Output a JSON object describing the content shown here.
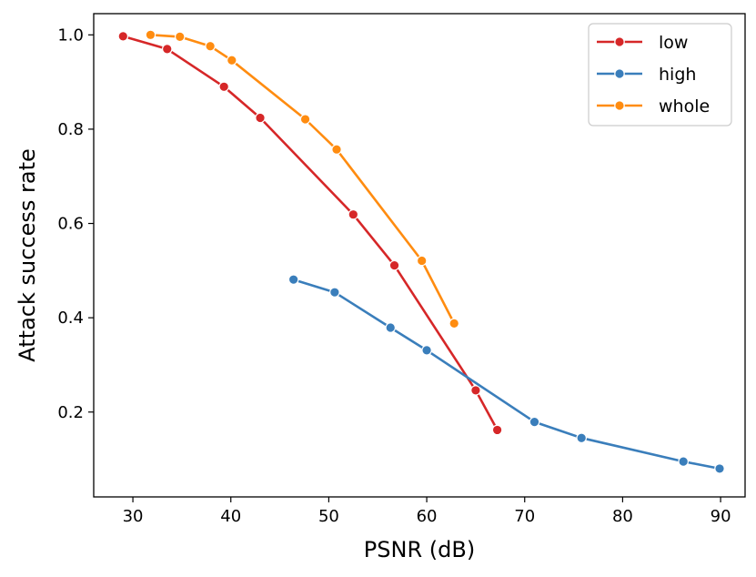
{
  "chart_data": {
    "type": "line",
    "title": "",
    "xlabel": "PSNR (dB)",
    "ylabel": "Attack success rate",
    "xlim": [
      26,
      92.5
    ],
    "ylim": [
      0.02,
      1.045
    ],
    "xticks": [
      30,
      40,
      50,
      60,
      70,
      80,
      90
    ],
    "yticks": [
      0.2,
      0.4,
      0.6,
      0.8,
      1.0
    ],
    "xtick_labels": [
      "30",
      "40",
      "50",
      "60",
      "70",
      "80",
      "90"
    ],
    "ytick_labels": [
      "0.2",
      "0.4",
      "0.6",
      "0.8",
      "1.0"
    ],
    "grid": false,
    "legend_position": "top-right",
    "series": [
      {
        "name": "low",
        "color": "#d62728",
        "x": [
          29.0,
          33.5,
          39.3,
          43.0,
          52.5,
          56.7,
          65.0,
          67.2
        ],
        "y": [
          0.997,
          0.97,
          0.89,
          0.824,
          0.619,
          0.511,
          0.246,
          0.162
        ]
      },
      {
        "name": "high",
        "color": "#3a7ebb",
        "x": [
          46.4,
          50.6,
          56.3,
          60.0,
          71.0,
          75.8,
          86.2,
          89.9
        ],
        "y": [
          0.481,
          0.454,
          0.379,
          0.331,
          0.179,
          0.145,
          0.095,
          0.08
        ]
      },
      {
        "name": "whole",
        "color": "#ff8c10",
        "x": [
          31.8,
          34.8,
          37.9,
          40.1,
          47.6,
          50.8,
          59.5,
          62.8
        ],
        "y": [
          1.0,
          0.996,
          0.976,
          0.946,
          0.821,
          0.757,
          0.521,
          0.388
        ]
      }
    ]
  }
}
